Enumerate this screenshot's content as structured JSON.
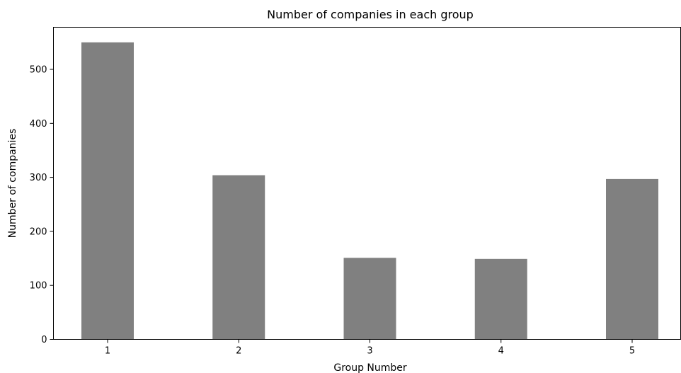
{
  "chart_data": {
    "type": "bar",
    "title": "Number of companies in each group",
    "xlabel": "Group Number",
    "ylabel": "Number of companies",
    "categories": [
      "1",
      "2",
      "3",
      "4",
      "5"
    ],
    "values": [
      550,
      304,
      151,
      149,
      297
    ],
    "ylim": [
      0,
      578
    ],
    "yticks": [
      0,
      100,
      200,
      300,
      400,
      500
    ],
    "bar_color": "#808080",
    "grid": false,
    "legend": "none"
  }
}
